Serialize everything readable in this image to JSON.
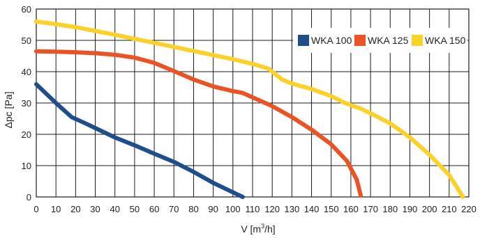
{
  "chart_data": {
    "type": "line",
    "xlabel": "V [m",
    "xlabel_sup": "3",
    "xlabel_suffix": "/h]",
    "ylabel": "Δpc [Pa]",
    "xlim": [
      0,
      220
    ],
    "ylim": [
      0,
      60
    ],
    "x_ticks": [
      0,
      10,
      20,
      30,
      40,
      50,
      60,
      70,
      80,
      90,
      100,
      110,
      120,
      130,
      140,
      150,
      160,
      170,
      180,
      190,
      200,
      210,
      220
    ],
    "y_ticks": [
      0,
      10,
      20,
      30,
      40,
      50,
      60
    ],
    "grid": true,
    "legend_position": "top-right",
    "series": [
      {
        "name": "WKA 100",
        "color": "#1f4e8c",
        "points": [
          [
            0,
            36
          ],
          [
            10,
            30
          ],
          [
            18,
            25.5
          ],
          [
            25,
            23.5
          ],
          [
            30,
            22
          ],
          [
            40,
            19
          ],
          [
            50,
            16.5
          ],
          [
            60,
            13.8
          ],
          [
            70,
            11.2
          ],
          [
            80,
            8
          ],
          [
            90,
            4.5
          ],
          [
            100,
            1.5
          ],
          [
            105,
            0
          ]
        ]
      },
      {
        "name": "WKA 125",
        "color": "#ea5323",
        "points": [
          [
            0,
            46.5
          ],
          [
            10,
            46.4
          ],
          [
            20,
            46.2
          ],
          [
            30,
            45.9
          ],
          [
            40,
            45.4
          ],
          [
            50,
            44.5
          ],
          [
            60,
            42.8
          ],
          [
            70,
            40.2
          ],
          [
            80,
            37.5
          ],
          [
            90,
            35.3
          ],
          [
            100,
            33.8
          ],
          [
            105,
            33.2
          ],
          [
            110,
            31.8
          ],
          [
            120,
            29
          ],
          [
            130,
            25.5
          ],
          [
            140,
            21.5
          ],
          [
            150,
            16.8
          ],
          [
            158,
            11.5
          ],
          [
            163,
            5.5
          ],
          [
            165,
            0.5
          ]
        ]
      },
      {
        "name": "WKA 150",
        "color": "#fcd22a",
        "points": [
          [
            0,
            56
          ],
          [
            10,
            55.2
          ],
          [
            20,
            54.2
          ],
          [
            30,
            53
          ],
          [
            40,
            51.8
          ],
          [
            50,
            50.5
          ],
          [
            60,
            49.2
          ],
          [
            70,
            47.9
          ],
          [
            80,
            46.6
          ],
          [
            90,
            45.3
          ],
          [
            100,
            44
          ],
          [
            110,
            42.5
          ],
          [
            118,
            41
          ],
          [
            125,
            37.5
          ],
          [
            130,
            36.2
          ],
          [
            140,
            34.5
          ],
          [
            150,
            32.2
          ],
          [
            157,
            30
          ],
          [
            165,
            28.2
          ],
          [
            170,
            26.7
          ],
          [
            180,
            23.5
          ],
          [
            190,
            19
          ],
          [
            200,
            13.5
          ],
          [
            210,
            7
          ],
          [
            217,
            0
          ]
        ]
      }
    ]
  }
}
